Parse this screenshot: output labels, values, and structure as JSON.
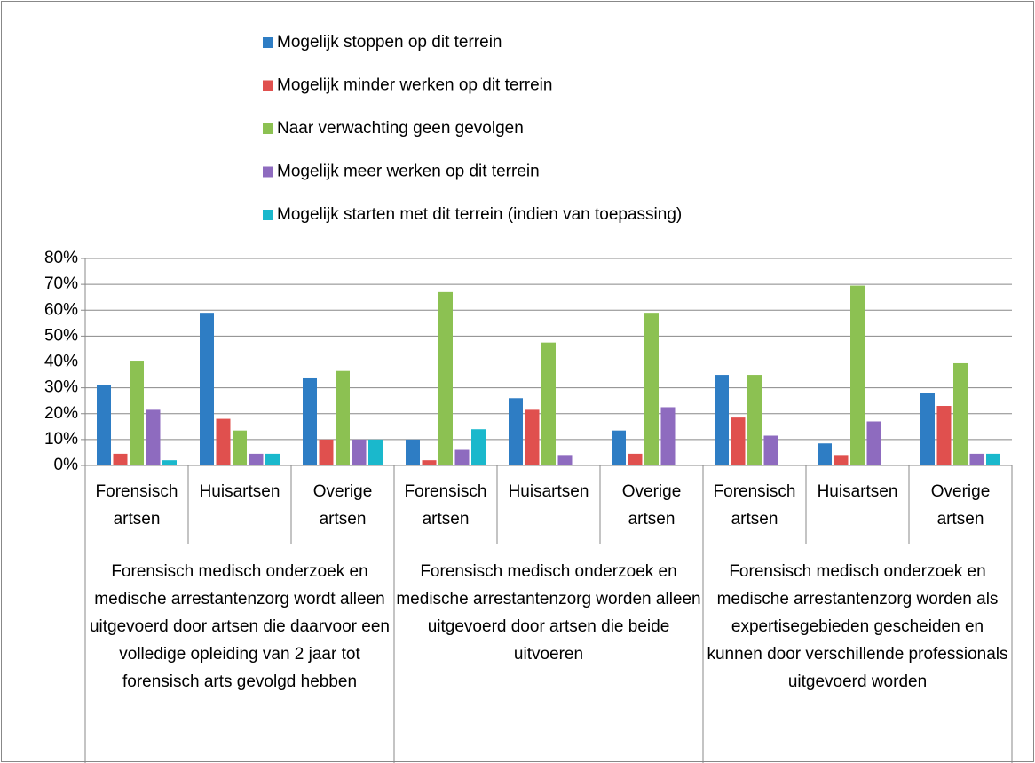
{
  "chart_data": {
    "type": "bar",
    "categories": [
      "Forensisch artsen",
      "Huisartsen",
      "Overige artsen",
      "Forensisch artsen",
      "Huisartsen",
      "Overige artsen",
      "Forensisch artsen",
      "Huisartsen",
      "Overige artsen"
    ],
    "groups": [
      {
        "name": "Forensisch medisch onderzoek en medische arrestantenzorg wordt alleen uitgevoerd door artsen die daarvoor een volledige opleiding van 2 jaar tot forensisch arts gevolgd hebben",
        "span": 3
      },
      {
        "name": "Forensisch medisch onderzoek en medische arrestantenzorg worden alleen uitgevoerd door artsen die beide uitvoeren",
        "span": 3
      },
      {
        "name": "Forensisch medisch onderzoek en medische arrestantenzorg worden als expertisegebieden gescheiden en kunnen door verschillende professionals uitgevoerd worden",
        "span": 3
      }
    ],
    "series": [
      {
        "name": "Mogelijk stoppen op dit terrein",
        "color": "#2e7dc4",
        "values": [
          31,
          59,
          34,
          10,
          26,
          13.5,
          35,
          8.5,
          28
        ]
      },
      {
        "name": "Mogelijk minder werken op dit terrein",
        "color": "#e0504e",
        "values": [
          4.5,
          18,
          10,
          2,
          21.5,
          4.5,
          18.5,
          4,
          23
        ]
      },
      {
        "name": "Naar verwachting geen gevolgen",
        "color": "#8cc152",
        "values": [
          40.5,
          13.5,
          36.5,
          67,
          47.5,
          59,
          35,
          69.5,
          39.5
        ]
      },
      {
        "name": "Mogelijk meer werken op dit terrein",
        "color": "#8e6bbf",
        "values": [
          21.5,
          4.5,
          10,
          6,
          4,
          22.5,
          11.5,
          17,
          4.5
        ]
      },
      {
        "name": "Mogelijk starten met dit terrein (indien van toepassing)",
        "color": "#1ab8cc",
        "values": [
          2,
          4.5,
          10,
          14,
          0,
          0,
          0,
          0,
          4.5
        ]
      }
    ],
    "ylim": [
      0,
      80
    ],
    "yticks": [
      {
        "value": 0,
        "label": "0%"
      },
      {
        "value": 10,
        "label": "10%"
      },
      {
        "value": 20,
        "label": "20%"
      },
      {
        "value": 30,
        "label": "30%"
      },
      {
        "value": 40,
        "label": "40%"
      },
      {
        "value": 50,
        "label": "50%"
      },
      {
        "value": 60,
        "label": "60%"
      },
      {
        "value": 70,
        "label": "70%"
      },
      {
        "value": 80,
        "label": "80%"
      }
    ],
    "grid": true,
    "legend": "top"
  }
}
